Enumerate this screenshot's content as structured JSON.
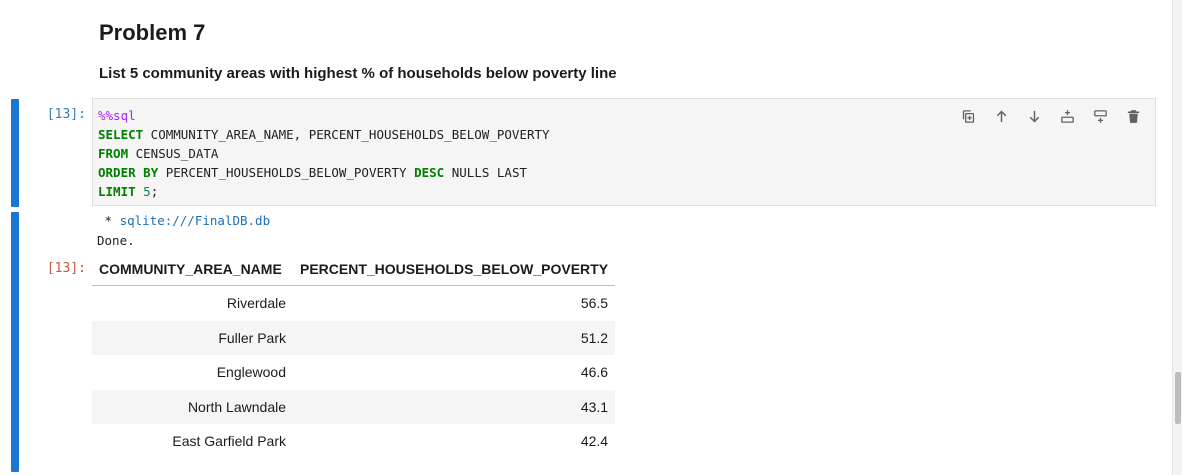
{
  "markdown": {
    "title": "Problem 7",
    "text": "List 5 community areas with highest % of households below poverty line"
  },
  "input_cell": {
    "prompt": "[13]:",
    "code": {
      "magic": "%%sql",
      "line1_kw": "SELECT",
      "line1_rest": " COMMUNITY_AREA_NAME, PERCENT_HOUSEHOLDS_BELOW_POVERTY",
      "line2_kw": "FROM",
      "line2_rest": " CENSUS_DATA",
      "line3_kw1": "ORDER",
      "line3_kw2": "BY",
      "line3_mid": " PERCENT_HOUSEHOLDS_BELOW_POVERTY ",
      "line3_kw3": "DESC",
      "line3_rest": " NULLS LAST",
      "line4_kw": "LIMIT",
      "line4_num": "5",
      "line4_rest": ";"
    },
    "toolbar_icons": [
      "duplicate-icon",
      "move-up-icon",
      "move-down-icon",
      "insert-above-icon",
      "insert-below-icon",
      "delete-icon"
    ]
  },
  "output_cell": {
    "prompt": "[13]:",
    "connection_prefix": " * ",
    "connection": "sqlite:///FinalDB.db",
    "status": "Done.",
    "table": {
      "headers": [
        "COMMUNITY_AREA_NAME",
        "PERCENT_HOUSEHOLDS_BELOW_POVERTY"
      ],
      "rows": [
        [
          "Riverdale",
          "56.5"
        ],
        [
          "Fuller Park",
          "51.2"
        ],
        [
          "Englewood",
          "46.6"
        ],
        [
          "North Lawndale",
          "43.1"
        ],
        [
          "East Garfield Park",
          "42.4"
        ]
      ]
    }
  },
  "colors": {
    "accent": "#1976d2",
    "prompt_in": "#307fc1",
    "prompt_out": "#bf5b3d",
    "keyword": "#008000",
    "magic": "#aa22ff"
  }
}
